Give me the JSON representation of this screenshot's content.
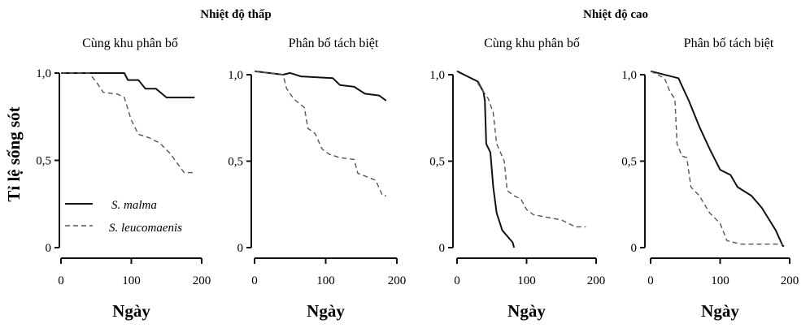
{
  "group_titles": [
    "Nhiệt độ thấp",
    "Nhiệt độ cao"
  ],
  "ylabel": "Tỉ lệ sống sót",
  "legend": [
    "S. malma",
    "S. leucomaenis"
  ],
  "colors": {
    "malma": "#111111",
    "leucomaenis": "#555555"
  },
  "chart_data": [
    {
      "type": "line",
      "group": "Nhiệt độ thấp",
      "title": "Cùng khu phân bố",
      "xlabel": "Ngày",
      "ylabel": "Tỉ lệ sống sót",
      "xlim": [
        0,
        200
      ],
      "ylim": [
        0,
        1
      ],
      "xticks": [
        "0",
        "100",
        "200"
      ],
      "yticks": [
        "0",
        "0,5",
        "1,0"
      ],
      "series": [
        {
          "name": "S. malma",
          "style": "solid",
          "points": [
            [
              0,
              1
            ],
            [
              90,
              1
            ],
            [
              95,
              0.96
            ],
            [
              110,
              0.96
            ],
            [
              120,
              0.91
            ],
            [
              135,
              0.91
            ],
            [
              150,
              0.86
            ],
            [
              190,
              0.86
            ]
          ]
        },
        {
          "name": "S. leucomaenis",
          "style": "dashed",
          "points": [
            [
              0,
              1
            ],
            [
              40,
              1
            ],
            [
              50,
              0.95
            ],
            [
              60,
              0.89
            ],
            [
              80,
              0.88
            ],
            [
              90,
              0.86
            ],
            [
              100,
              0.73
            ],
            [
              110,
              0.65
            ],
            [
              125,
              0.63
            ],
            [
              140,
              0.6
            ],
            [
              155,
              0.54
            ],
            [
              175,
              0.43
            ],
            [
              190,
              0.43
            ]
          ]
        }
      ]
    },
    {
      "type": "line",
      "group": "Nhiệt độ thấp",
      "title": "Phân bố tách biệt",
      "xlabel": "Ngày",
      "xlim": [
        0,
        200
      ],
      "ylim": [
        0,
        1
      ],
      "xticks": [
        "0",
        "100",
        "200"
      ],
      "yticks": [
        "0",
        "0,5",
        "1,0"
      ],
      "series": [
        {
          "name": "S. malma",
          "style": "solid",
          "points": [
            [
              0,
              1.02
            ],
            [
              40,
              1.0
            ],
            [
              50,
              1.01
            ],
            [
              65,
              0.99
            ],
            [
              110,
              0.98
            ],
            [
              120,
              0.94
            ],
            [
              140,
              0.93
            ],
            [
              155,
              0.89
            ],
            [
              175,
              0.88
            ],
            [
              185,
              0.85
            ]
          ]
        },
        {
          "name": "S. leucomaenis",
          "style": "dashed",
          "points": [
            [
              0,
              1.02
            ],
            [
              40,
              1.0
            ],
            [
              45,
              0.92
            ],
            [
              55,
              0.86
            ],
            [
              70,
              0.81
            ],
            [
              75,
              0.69
            ],
            [
              85,
              0.66
            ],
            [
              95,
              0.57
            ],
            [
              105,
              0.54
            ],
            [
              120,
              0.52
            ],
            [
              140,
              0.51
            ],
            [
              145,
              0.43
            ],
            [
              170,
              0.39
            ],
            [
              180,
              0.3
            ],
            [
              185,
              0.3
            ]
          ]
        }
      ]
    },
    {
      "type": "line",
      "group": "Nhiệt độ cao",
      "title": "Cùng khu phân bố",
      "xlabel": "Ngày",
      "xlim": [
        0,
        200
      ],
      "ylim": [
        0,
        1
      ],
      "xticks": [
        "0",
        "100",
        "200"
      ],
      "yticks": [
        "0",
        "0,5",
        "1,0"
      ],
      "series": [
        {
          "name": "S. malma",
          "style": "solid",
          "points": [
            [
              0,
              1.02
            ],
            [
              30,
              0.96
            ],
            [
              38,
              0.9
            ],
            [
              40,
              0.85
            ],
            [
              42,
              0.6
            ],
            [
              48,
              0.55
            ],
            [
              52,
              0.35
            ],
            [
              57,
              0.2
            ],
            [
              65,
              0.1
            ],
            [
              80,
              0.03
            ],
            [
              82,
              0
            ]
          ]
        },
        {
          "name": "S. leucomaenis",
          "style": "dashed",
          "points": [
            [
              30,
              0.95
            ],
            [
              45,
              0.86
            ],
            [
              52,
              0.78
            ],
            [
              57,
              0.6
            ],
            [
              68,
              0.5
            ],
            [
              72,
              0.33
            ],
            [
              82,
              0.3
            ],
            [
              92,
              0.28
            ],
            [
              100,
              0.22
            ],
            [
              110,
              0.19
            ],
            [
              150,
              0.16
            ],
            [
              170,
              0.12
            ],
            [
              185,
              0.12
            ]
          ]
        }
      ]
    },
    {
      "type": "line",
      "group": "Nhiệt độ cao",
      "title": "Phân bố tách biệt",
      "xlabel": "Ngày",
      "xlim": [
        0,
        200
      ],
      "ylim": [
        0,
        1
      ],
      "xticks": [
        "0",
        "100",
        "200"
      ],
      "yticks": [
        "0",
        "0,5",
        "1,0"
      ],
      "series": [
        {
          "name": "S. malma",
          "style": "solid",
          "points": [
            [
              0,
              1.02
            ],
            [
              40,
              0.98
            ],
            [
              55,
              0.85
            ],
            [
              70,
              0.7
            ],
            [
              85,
              0.57
            ],
            [
              100,
              0.45
            ],
            [
              115,
              0.42
            ],
            [
              125,
              0.35
            ],
            [
              145,
              0.3
            ],
            [
              160,
              0.23
            ],
            [
              180,
              0.1
            ],
            [
              190,
              0.01
            ],
            [
              192,
              0.01
            ]
          ]
        },
        {
          "name": "S. leucomaenis",
          "style": "dashed",
          "points": [
            [
              0,
              1.02
            ],
            [
              20,
              0.98
            ],
            [
              28,
              0.9
            ],
            [
              35,
              0.86
            ],
            [
              38,
              0.6
            ],
            [
              45,
              0.53
            ],
            [
              52,
              0.52
            ],
            [
              58,
              0.35
            ],
            [
              70,
              0.3
            ],
            [
              85,
              0.2
            ],
            [
              100,
              0.14
            ],
            [
              110,
              0.04
            ],
            [
              130,
              0.02
            ],
            [
              190,
              0.02
            ]
          ]
        }
      ]
    }
  ]
}
